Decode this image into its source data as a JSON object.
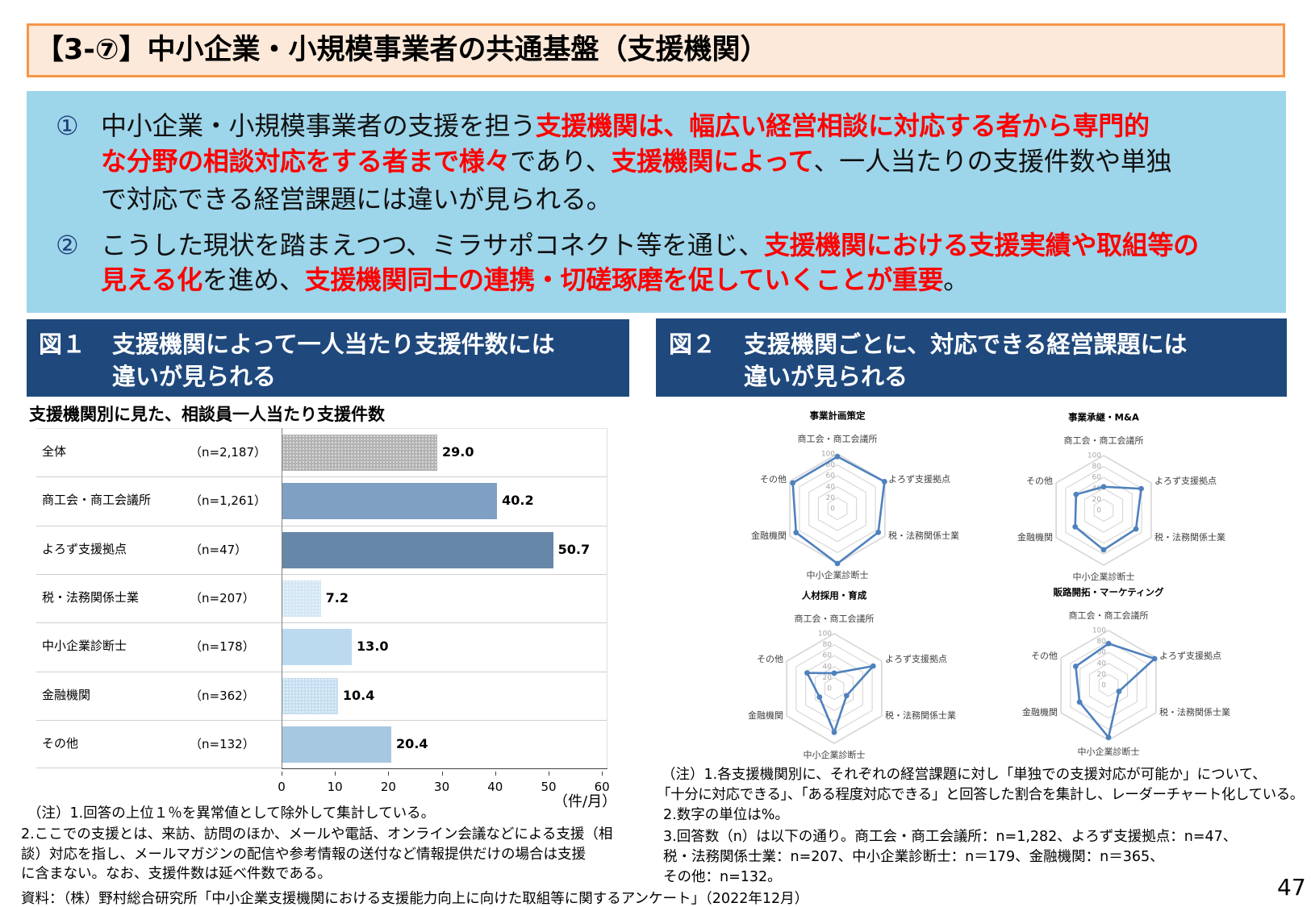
{
  "header": {
    "title": "【3-⑦】中小企業・小規模事業者の共通基盤（支援機関）"
  },
  "summary": {
    "items": [
      {
        "marker": "①",
        "lines": [
          [
            {
              "t": "中小企業・小規模事業者の支援を担う",
              "em": false
            },
            {
              "t": "支援機関は、幅広い経営相談に対応する者から専門的",
              "em": true
            }
          ],
          [
            {
              "t": "な分野の相談対応をする者まで様々",
              "em": true
            },
            {
              "t": "であり、",
              "em": false
            },
            {
              "t": "支援機関によって",
              "em": true
            },
            {
              "t": "、一人当たりの支援件数や単独",
              "em": false
            }
          ],
          [
            {
              "t": "で対応できる経営課題には違いが見られる。",
              "em": false
            }
          ]
        ]
      },
      {
        "marker": "②",
        "lines": [
          [
            {
              "t": "こうした現状を踏まえつつ、ミラサポコネクト等を通じ、",
              "em": false
            },
            {
              "t": "支援機関における支援実績や取組等の",
              "em": true
            }
          ],
          [
            {
              "t": "見える化",
              "em": true
            },
            {
              "t": "を進め、",
              "em": false
            },
            {
              "t": "支援機関同士の連携・切磋琢磨を促していくことが重要",
              "em": true
            },
            {
              "t": "。",
              "em": false
            }
          ]
        ]
      }
    ]
  },
  "figure1": {
    "label": "図１",
    "title_lines": [
      "支援機関によって一人当たり支援件数には",
      "違いが見られる"
    ],
    "subtitle": "支援機関別に見た、相談員一人当たり支援件数",
    "notes": [
      "（注）1.回答の上位１％を異常値として除外して集計している。",
      "2.ここでの支援とは、来訪、訪問のほか、メールや電話、オンライン会議などによる支援（相",
      "談）対応を指し、メールマガジンの配信や参考情報の送付など情報提供だけの場合は支援",
      "に含まない。なお、支援件数は延べ件数である。"
    ]
  },
  "figure2": {
    "label": "図２",
    "title_lines": [
      "支援機関ごとに、対応できる経営課題には",
      "違いが見られる"
    ],
    "notes": [
      "（注）1.各支援機関別に、それぞれの経営課題に対し「単独での支援対応が可能か」について、",
      "「十分に対応できる」、「ある程度対応できる」と回答した割合を集計し、レーダーチャート化している。",
      "2.数字の単位は%。",
      "3.回答数（n）は以下の通り。商工会・商工会議所：n=1,282、よろず支援拠点：n=47、",
      "税・法務関係士業：n=207、中小企業診断士：n＝179、金融機関：n＝365、",
      "その他：n=132。"
    ]
  },
  "source": "資料：（株）野村総合研究所「中小企業支援機関における支援能力向上に向けた取組等に関するアンケート」（2022年12月）",
  "page_number": "47",
  "colors": {
    "title_border": "#f79646",
    "title_bg": "#fde9d9",
    "summary_bg": "#9dd5ea",
    "emphasis": "#ff0000",
    "figure_header_bg": "#1f497d",
    "radar_series": "#4f81bd",
    "radar_grid": "#d9d9d9"
  },
  "chart_data": [
    {
      "type": "bar",
      "orientation": "horizontal",
      "title": "支援機関別に見た、相談員一人当たり支援件数",
      "categories": [
        "全体",
        "商工会・商工会議所",
        "よろず支援拠点",
        "税・法務関係士業",
        "中小企業診断士",
        "金融機関",
        "その他"
      ],
      "n_labels": [
        "（n=2,187）",
        "（n=1,261）",
        "（n=47）",
        "（n=207）",
        "（n=178）",
        "（n=362）",
        "（n=132）"
      ],
      "values": [
        29.0,
        40.2,
        50.7,
        7.2,
        13.0,
        10.4,
        20.4
      ],
      "value_labels": [
        "29.0",
        "40.2",
        "50.7",
        "7.2",
        "13.0",
        "10.4",
        "20.4"
      ],
      "bar_colors": [
        "#b3b3b3",
        "#7f9fc3",
        "#6787a8",
        "#d3e6f4",
        "#bcdaef",
        "#c5dff1",
        "#a6c8e1"
      ],
      "bar_patterns": [
        "dots",
        "solid",
        "solid",
        "dots",
        "solid",
        "dots",
        "solid"
      ],
      "xlabel": "（件/月）",
      "ylabel": "",
      "xlim": [
        0,
        60
      ],
      "xticks": [
        0,
        10,
        20,
        30,
        40,
        50,
        60
      ],
      "grid": false,
      "legend": "none"
    },
    {
      "type": "radar",
      "title": "事業計画策定",
      "axes": [
        "商工会・商工会議所",
        "よろず支援拠点",
        "税・法務関係士業",
        "中小企業診断士",
        "金融機関",
        "その他"
      ],
      "values": [
        95,
        99,
        86,
        100,
        87,
        94
      ],
      "rlim": [
        0,
        100
      ],
      "rticks": [
        0,
        20,
        40,
        60,
        80,
        100
      ],
      "unit": "%"
    },
    {
      "type": "radar",
      "title": "事業承継・M&A",
      "axes": [
        "商工会・商工会議所",
        "よろず支援拠点",
        "税・法務関係士業",
        "中小企業診断士",
        "金融機関",
        "その他"
      ],
      "values": [
        43,
        79,
        68,
        72,
        60,
        58
      ],
      "rlim": [
        0,
        100
      ],
      "rticks": [
        0,
        20,
        40,
        60,
        80,
        100
      ],
      "unit": "%"
    },
    {
      "type": "radar",
      "title": "人材採用・育成",
      "axes": [
        "商工会・商工会議所",
        "よろず支援拠点",
        "税・法務関係士業",
        "中小企業診断士",
        "金融機関",
        "その他"
      ],
      "values": [
        28,
        82,
        26,
        80,
        31,
        57
      ],
      "rlim": [
        0,
        100
      ],
      "rticks": [
        0,
        20,
        40,
        60,
        80,
        100
      ],
      "unit": "%"
    },
    {
      "type": "radar",
      "title": "販路開拓・マーケティング",
      "axes": [
        "商工会・商工会議所",
        "よろず支援拠点",
        "税・法務関係士業",
        "中小企業診断士",
        "金融機関",
        "その他"
      ],
      "values": [
        76,
        97,
        22,
        95,
        61,
        69
      ],
      "rlim": [
        0,
        100
      ],
      "rticks": [
        0,
        20,
        40,
        60,
        80,
        100
      ],
      "unit": "%"
    }
  ]
}
